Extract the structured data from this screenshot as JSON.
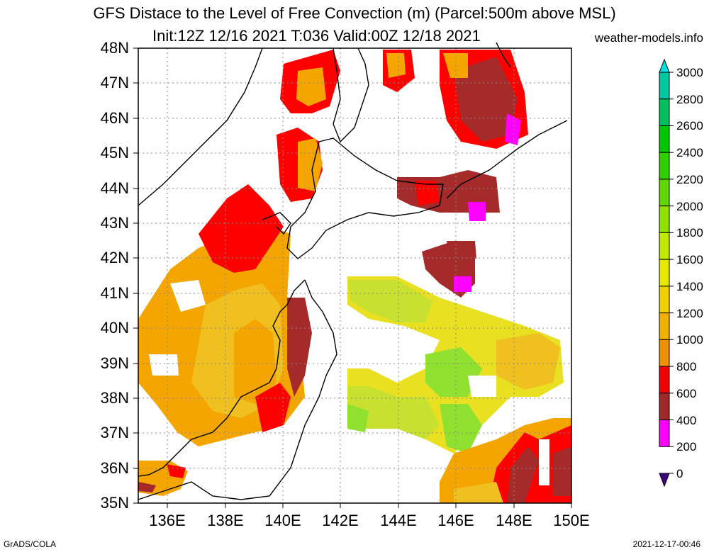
{
  "title_line1": "GFS Distace to the Level of Free Convection (m) (Parcel:500m above MSL)",
  "title_line2": "Init:12Z 12/16 2021 T:036 Valid:00Z 12/18 2021",
  "site": "weather-models.info",
  "footer_left": "GrADS/COLA",
  "footer_right": "2021-12-17-00:46",
  "lat_labels": [
    "48N",
    "47N",
    "46N",
    "45N",
    "44N",
    "43N",
    "42N",
    "41N",
    "40N",
    "39N",
    "38N",
    "37N",
    "36N",
    "35N"
  ],
  "lon_labels": [
    "136E",
    "138E",
    "140E",
    "142E",
    "144E",
    "146E",
    "148E",
    "150E"
  ],
  "colorbar": {
    "levels": [
      "3000",
      "2800",
      "2600",
      "2400",
      "2200",
      "2000",
      "1800",
      "1600",
      "1400",
      "1200",
      "1000",
      "800",
      "600",
      "400",
      "200",
      "0"
    ],
    "colors": [
      "#00e0e0",
      "#00c8a0",
      "#00c060",
      "#00c800",
      "#30d000",
      "#60d800",
      "#90e000",
      "#c0e800",
      "#e8e800",
      "#f0d000",
      "#f0b000",
      "#f09000",
      "#f00000",
      "#a02828",
      "#ff00ff",
      "#400080"
    ]
  },
  "map": {
    "lon_range": [
      135,
      150
    ],
    "lat_range": [
      35,
      48
    ],
    "grid": true,
    "field_colors": {
      "magenta": "#ff00ff",
      "brown": "#a52a2a",
      "red": "#ff0000",
      "orange": "#f5a500",
      "yelloworange": "#f0c020",
      "yellow": "#e8e020",
      "yellowgreen": "#c8e030",
      "green": "#90e030"
    }
  }
}
